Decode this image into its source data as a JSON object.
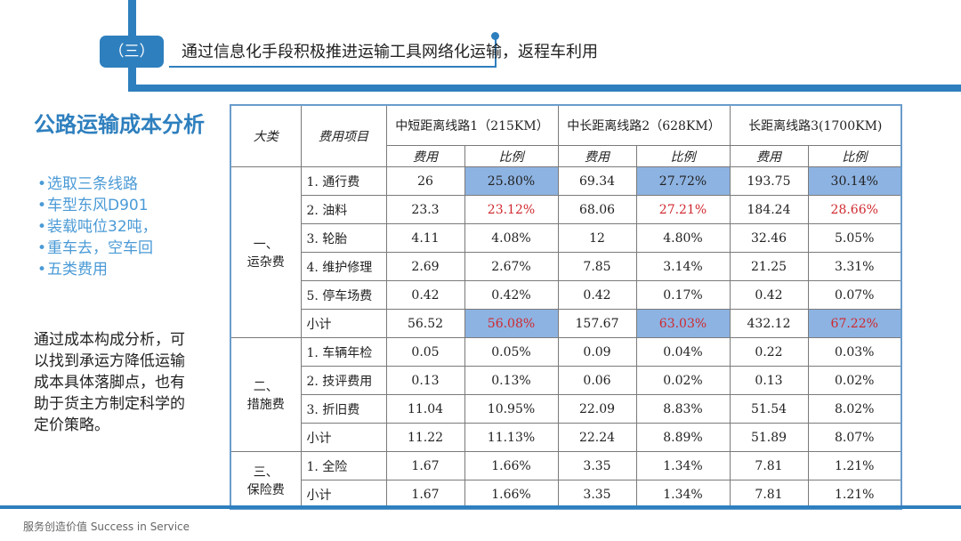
{
  "header": {
    "section_label": "（三）",
    "title": "通过信息化手段积极推进运输工具网络化运输，返程车利用"
  },
  "left_panel": {
    "title": "公路运输成本分析",
    "bullets": [
      "选取三条线路",
      "车型东风D901",
      "装载吨位32吨，",
      "重车去，空车回",
      "五类费用"
    ],
    "note": "通过成本构成分析，可以找到承运方降低运输成本具体落脚点，也有助于货主方制定科学的定价策略。"
  },
  "table": {
    "col_category": "大类",
    "col_item": "费用项目",
    "routes": [
      "中短距离线路1（215KM）",
      "中长距离线路2（628KM）",
      "长距离线路3(1700KM)"
    ],
    "sub_cost": "费用",
    "sub_ratio": "比例",
    "groups": [
      {
        "name": "一、\n运杂费",
        "rows": [
          {
            "item": "1. 通行费",
            "values": [
              "26",
              "25.80%",
              "69.34",
              "27.72%",
              "193.75",
              "30.14%"
            ]
          },
          {
            "item": "2. 油料",
            "values": [
              "23.3",
              "23.12%",
              "68.06",
              "27.21%",
              "184.24",
              "28.66%"
            ]
          },
          {
            "item": "3. 轮胎",
            "values": [
              "4.11",
              "4.08%",
              "12",
              "4.80%",
              "32.46",
              "5.05%"
            ]
          },
          {
            "item": "4. 维护修理",
            "values": [
              "2.69",
              "2.67%",
              "7.85",
              "3.14%",
              "21.25",
              "3.31%"
            ]
          },
          {
            "item": "5. 停车场费",
            "values": [
              "0.42",
              "0.42%",
              "0.42",
              "0.17%",
              "0.42",
              "0.07%"
            ]
          },
          {
            "item": "小计",
            "values": [
              "56.52",
              "56.08%",
              "157.67",
              "63.03%",
              "432.12",
              "67.22%"
            ]
          }
        ]
      },
      {
        "name": "二、\n措施费",
        "rows": [
          {
            "item": "1. 车辆年检",
            "values": [
              "0.05",
              "0.05%",
              "0.09",
              "0.04%",
              "0.22",
              "0.03%"
            ]
          },
          {
            "item": "2. 技评费用",
            "values": [
              "0.13",
              "0.13%",
              "0.06",
              "0.02%",
              "0.13",
              "0.02%"
            ]
          },
          {
            "item": "3. 折旧费",
            "values": [
              "11.04",
              "10.95%",
              "22.09",
              "8.83%",
              "51.54",
              "8.02%"
            ]
          },
          {
            "item": "小计",
            "values": [
              "11.22",
              "11.13%",
              "22.24",
              "8.89%",
              "51.89",
              "8.07%"
            ]
          }
        ]
      },
      {
        "name": "三、\n保险费",
        "rows": [
          {
            "item": "1. 全险",
            "values": [
              "1.67",
              "1.66%",
              "3.35",
              "1.34%",
              "7.81",
              "1.21%"
            ]
          },
          {
            "item": "小计",
            "values": [
              "1.67",
              "1.66%",
              "3.35",
              "1.34%",
              "7.81",
              "1.21%"
            ]
          }
        ]
      }
    ]
  },
  "colors": {
    "brand_blue": "#2e7fbe",
    "bullet_blue": "#4a9ad6",
    "highlight_fill": "#8db3e2",
    "emphasis_red": "#d0282e"
  },
  "footer": {
    "text": "服务创造价值  Success in Service"
  }
}
